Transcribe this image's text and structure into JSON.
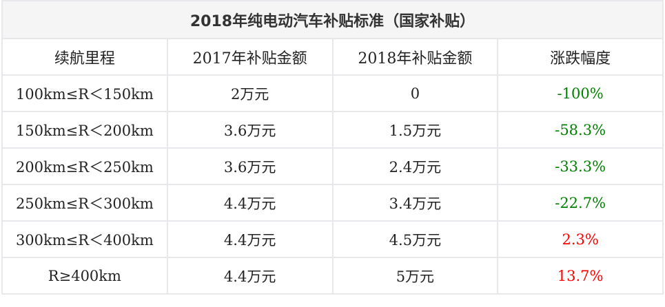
{
  "table": {
    "title": "2018年纯电动汽车补贴标准（国家补贴）",
    "headers": [
      "续航里程",
      "2017年补贴金额",
      "2018年补贴金额",
      "涨跌幅度"
    ],
    "rows": [
      {
        "range": "100km≤R＜150km",
        "y2017": "2万元",
        "y2018": "0",
        "change": "-100%",
        "color": "#008000"
      },
      {
        "range": "150km≤R＜200km",
        "y2017": "3.6万元",
        "y2018": "1.5万元",
        "change": "-58.3%",
        "color": "#008000"
      },
      {
        "range": "200km≤R＜250km",
        "y2017": "3.6万元",
        "y2018": "2.4万元",
        "change": "-33.3%",
        "color": "#008000"
      },
      {
        "range": "250km≤R＜300km",
        "y2017": "4.4万元",
        "y2018": "3.4万元",
        "change": "-22.7%",
        "color": "#008000"
      },
      {
        "range": "300km≤R＜400km",
        "y2017": "4.4万元",
        "y2018": "4.5万元",
        "change": "2.3%",
        "color": "#ff0000"
      },
      {
        "range": "R≥400km",
        "y2017": "4.4万元",
        "y2018": "5万元",
        "change": "13.7%",
        "color": "#ff0000"
      }
    ]
  }
}
